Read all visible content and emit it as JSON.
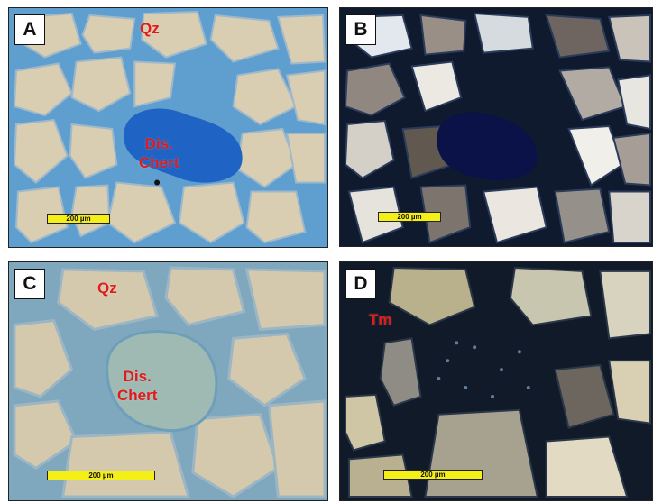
{
  "panels": [
    {
      "id": "A",
      "label": "A",
      "annotations": [
        "Qz",
        "Dis.\nChert"
      ],
      "scale_bar": "200 µm"
    },
    {
      "id": "B",
      "label": "B",
      "annotations": [],
      "scale_bar": "200 µm"
    },
    {
      "id": "C",
      "label": "C",
      "annotations": [
        "Qz",
        "Dis.\nChert"
      ],
      "scale_bar": "200 µm"
    },
    {
      "id": "D",
      "label": "D",
      "annotations": [
        "Tm"
      ],
      "scale_bar": "200 µm"
    }
  ],
  "colors": {
    "annotation": "#e01b1b",
    "scale_bar": "#f4ef17",
    "pore_blue_A": "#4f93c9",
    "grain_tan": "#d8ccb0",
    "chert_blue": "#1f63c4",
    "matrix_dark": "#101828"
  }
}
